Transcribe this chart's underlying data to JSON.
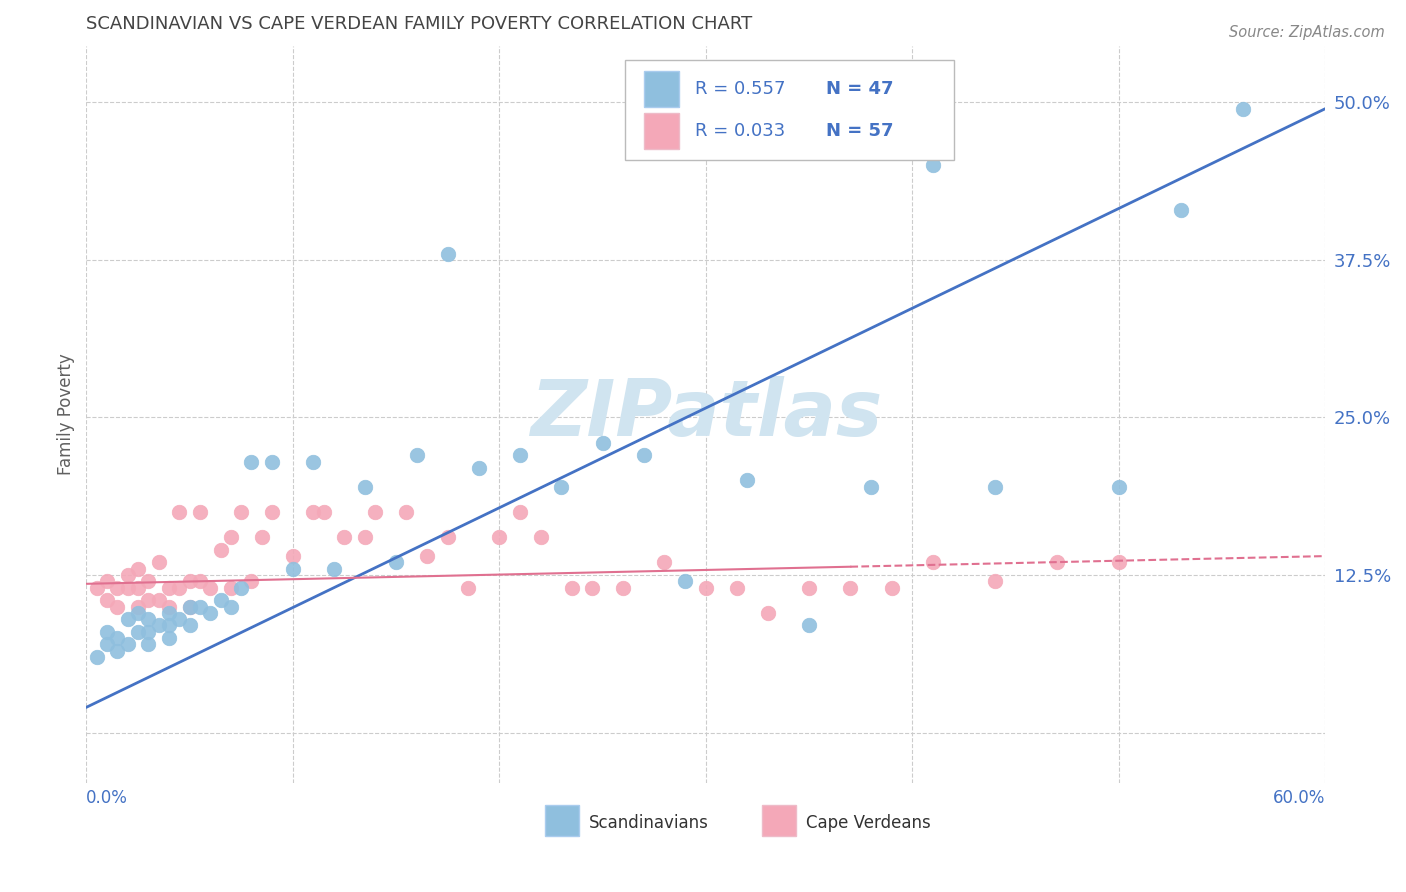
{
  "title": "SCANDINAVIAN VS CAPE VERDEAN FAMILY POVERTY CORRELATION CHART",
  "source": "Source: ZipAtlas.com",
  "ylabel": "Family Poverty",
  "yticks": [
    0.0,
    0.125,
    0.25,
    0.375,
    0.5
  ],
  "ytick_labels": [
    "",
    "12.5%",
    "25.0%",
    "37.5%",
    "50.0%"
  ],
  "xlim": [
    0.0,
    0.6
  ],
  "ylim": [
    -0.04,
    0.545
  ],
  "scandinavian_color": "#8FBFDE",
  "cape_verdean_color": "#F4A8B8",
  "line_blue": "#4472C4",
  "line_pink": "#E07090",
  "watermark_text": "ZIPatlas",
  "watermark_color": "#D0E4F0",
  "background_color": "#ffffff",
  "grid_color": "#CCCCCC",
  "title_color": "#444444",
  "axis_label_color": "#4472C4",
  "legend_r1": "R = 0.557",
  "legend_n1": "N = 47",
  "legend_r2": "R = 0.033",
  "legend_n2": "N = 57",
  "scand_line_x0": 0.0,
  "scand_line_y0": 0.02,
  "scand_line_x1": 0.6,
  "scand_line_y1": 0.495,
  "cape_line_x0": 0.0,
  "cape_line_y0": 0.118,
  "cape_line_x1": 0.6,
  "cape_line_y1": 0.14,
  "sc_x": [
    0.005,
    0.01,
    0.01,
    0.015,
    0.015,
    0.02,
    0.02,
    0.025,
    0.025,
    0.03,
    0.03,
    0.03,
    0.035,
    0.04,
    0.04,
    0.04,
    0.045,
    0.05,
    0.05,
    0.055,
    0.06,
    0.065,
    0.07,
    0.075,
    0.08,
    0.09,
    0.1,
    0.11,
    0.12,
    0.135,
    0.15,
    0.16,
    0.175,
    0.19,
    0.21,
    0.23,
    0.25,
    0.27,
    0.29,
    0.32,
    0.35,
    0.38,
    0.41,
    0.44,
    0.5,
    0.53,
    0.56
  ],
  "sc_y": [
    0.06,
    0.07,
    0.08,
    0.065,
    0.075,
    0.07,
    0.09,
    0.08,
    0.095,
    0.07,
    0.08,
    0.09,
    0.085,
    0.075,
    0.085,
    0.095,
    0.09,
    0.085,
    0.1,
    0.1,
    0.095,
    0.105,
    0.1,
    0.115,
    0.215,
    0.215,
    0.13,
    0.215,
    0.13,
    0.195,
    0.135,
    0.22,
    0.38,
    0.21,
    0.22,
    0.195,
    0.23,
    0.22,
    0.12,
    0.2,
    0.085,
    0.195,
    0.45,
    0.195,
    0.195,
    0.415,
    0.495
  ],
  "cv_x": [
    0.005,
    0.01,
    0.01,
    0.015,
    0.015,
    0.02,
    0.02,
    0.025,
    0.025,
    0.025,
    0.03,
    0.03,
    0.035,
    0.035,
    0.04,
    0.04,
    0.045,
    0.045,
    0.05,
    0.05,
    0.055,
    0.055,
    0.06,
    0.065,
    0.07,
    0.07,
    0.075,
    0.08,
    0.085,
    0.09,
    0.1,
    0.11,
    0.115,
    0.125,
    0.135,
    0.14,
    0.155,
    0.165,
    0.175,
    0.185,
    0.2,
    0.21,
    0.22,
    0.235,
    0.245,
    0.26,
    0.28,
    0.3,
    0.315,
    0.33,
    0.35,
    0.37,
    0.39,
    0.41,
    0.44,
    0.47,
    0.5
  ],
  "cv_y": [
    0.115,
    0.105,
    0.12,
    0.1,
    0.115,
    0.115,
    0.125,
    0.1,
    0.115,
    0.13,
    0.105,
    0.12,
    0.105,
    0.135,
    0.1,
    0.115,
    0.115,
    0.175,
    0.1,
    0.12,
    0.12,
    0.175,
    0.115,
    0.145,
    0.115,
    0.155,
    0.175,
    0.12,
    0.155,
    0.175,
    0.14,
    0.175,
    0.175,
    0.155,
    0.155,
    0.175,
    0.175,
    0.14,
    0.155,
    0.115,
    0.155,
    0.175,
    0.155,
    0.115,
    0.115,
    0.115,
    0.135,
    0.115,
    0.115,
    0.095,
    0.115,
    0.115,
    0.115,
    0.135,
    0.12,
    0.135,
    0.135
  ]
}
